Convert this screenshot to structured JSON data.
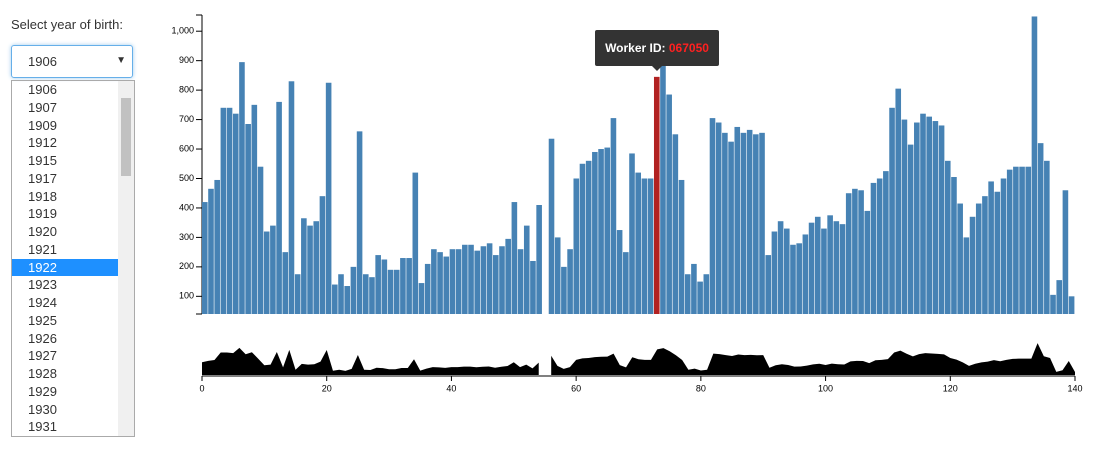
{
  "controls": {
    "label": "Select year of birth:",
    "selected": "1906",
    "options": [
      "1906",
      "1907",
      "1909",
      "1912",
      "1915",
      "1917",
      "1918",
      "1919",
      "1920",
      "1921",
      "1922",
      "1923",
      "1924",
      "1925",
      "1926",
      "1927",
      "1928",
      "1929",
      "1930",
      "1931"
    ],
    "highlighted_option": 10
  },
  "tooltip": {
    "label": "Worker ID:",
    "value": "067050",
    "value_color": "#ff2020"
  },
  "chart_data": [
    {
      "type": "bar",
      "color": "#4682b4",
      "highlight": 73,
      "highlight_color": "#b22222",
      "ylim": [
        40,
        1055
      ],
      "yticks": [
        100,
        200,
        300,
        400,
        500,
        600,
        700,
        800,
        900,
        {
          "value": 1000,
          "label": "1,000"
        }
      ],
      "values": [
        420,
        465,
        495,
        740,
        740,
        720,
        895,
        685,
        750,
        540,
        320,
        340,
        760,
        250,
        830,
        175,
        365,
        340,
        355,
        440,
        825,
        140,
        175,
        135,
        200,
        660,
        175,
        165,
        240,
        225,
        190,
        190,
        230,
        230,
        520,
        145,
        210,
        260,
        250,
        235,
        260,
        260,
        275,
        275,
        255,
        270,
        280,
        240,
        270,
        295,
        420,
        260,
        340,
        220,
        410,
        null,
        635,
        300,
        200,
        260,
        500,
        550,
        560,
        590,
        600,
        605,
        705,
        325,
        250,
        585,
        520,
        500,
        500,
        845,
        885,
        785,
        650,
        495,
        175,
        210,
        150,
        175,
        705,
        690,
        655,
        625,
        675,
        655,
        665,
        650,
        655,
        240,
        320,
        355,
        330,
        275,
        280,
        310,
        350,
        370,
        330,
        375,
        355,
        345,
        450,
        465,
        460,
        390,
        485,
        500,
        525,
        740,
        805,
        700,
        615,
        690,
        720,
        710,
        695,
        680,
        560,
        505,
        415,
        300,
        370,
        415,
        440,
        490,
        455,
        500,
        530,
        540,
        540,
        540,
        1050,
        620,
        560,
        105,
        155,
        460,
        100
      ]
    },
    {
      "type": "area",
      "source": 0,
      "color": "#000000",
      "xlim": [
        0,
        140
      ],
      "xticks": [
        0,
        20,
        40,
        60,
        80,
        100,
        120,
        140
      ],
      "ylim": [
        0,
        1055
      ]
    }
  ]
}
